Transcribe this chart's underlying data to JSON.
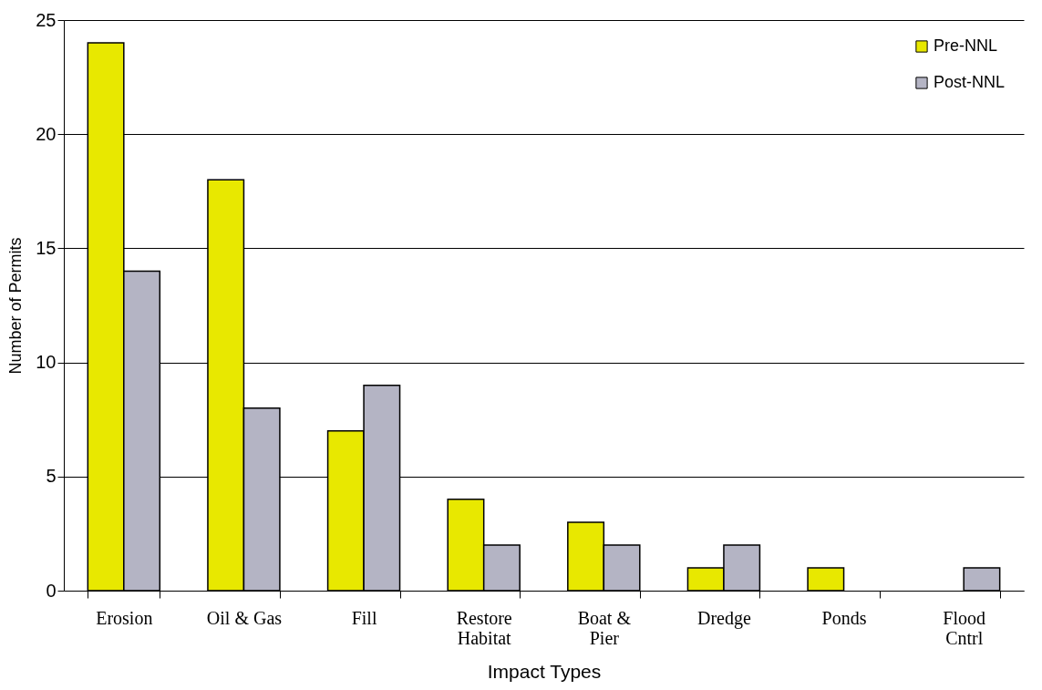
{
  "chart_data": {
    "type": "bar",
    "xlabel": "Impact Types",
    "ylabel": "Number of Permits",
    "categories": [
      "Erosion",
      "Oil & Gas",
      "Fill",
      "Restore Habitat",
      "Boat & Pier",
      "Dredge",
      "Ponds",
      "Flood Cntrl"
    ],
    "series": [
      {
        "name": "Pre-NNL",
        "color": "#e8e800",
        "values": [
          24,
          18,
          7,
          4,
          3,
          1,
          1,
          null
        ]
      },
      {
        "name": "Post-NNL",
        "color": "#b4b4c4",
        "values": [
          14,
          8,
          9,
          2,
          2,
          2,
          null,
          1
        ]
      }
    ],
    "ylim": [
      0,
      25
    ],
    "yticks": [
      0,
      5,
      10,
      15,
      20,
      25
    ],
    "grid": "y",
    "legend": "top right"
  }
}
